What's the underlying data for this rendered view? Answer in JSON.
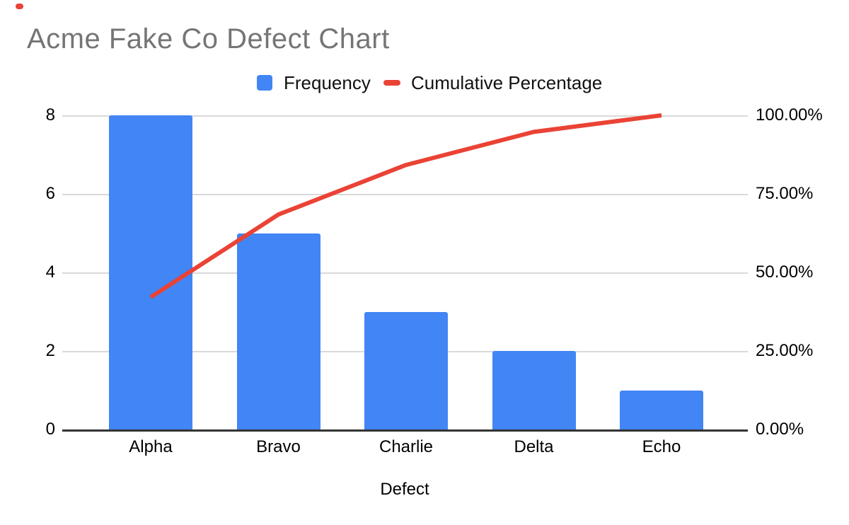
{
  "chart_data": {
    "type": "bar",
    "subtype": "pareto-combo-bar-line",
    "title": "Acme Fake Co Defect Chart",
    "xlabel": "Defect",
    "ylabel_left": "",
    "ylabel_right": "",
    "categories": [
      "Alpha",
      "Bravo",
      "Charlie",
      "Delta",
      "Echo"
    ],
    "series": [
      {
        "name": "Frequency",
        "render": "bar",
        "axis": "left",
        "values": [
          8,
          5,
          3,
          2,
          1
        ],
        "color": "#4285F4"
      },
      {
        "name": "Cumulative Percentage",
        "render": "line",
        "axis": "right",
        "values_percent": [
          42.11,
          68.42,
          84.21,
          94.74,
          100.0
        ],
        "color": "#EA4335"
      }
    ],
    "left_axis": {
      "tick_labels_top_to_bottom": [
        "8",
        "6",
        "4",
        "2",
        "0"
      ],
      "range": [
        0,
        8
      ]
    },
    "right_axis": {
      "tick_labels_top_to_bottom": [
        "100.00%",
        "75.00%",
        "50.00%",
        "25.00%",
        "0.00%"
      ],
      "range_percent": [
        0,
        100
      ]
    },
    "grid": true,
    "legend_position": "top"
  },
  "legend": {
    "frequency_label": "Frequency",
    "cumulative_label": "Cumulative Percentage"
  },
  "colors": {
    "bar_blue": "#4285F4",
    "line_red": "#EA4335",
    "title_gray": "#757575",
    "gridline_gray": "#d9d9d9",
    "axis_line_dark": "#333333",
    "label_black": "#111111",
    "corner_dot_red": "#e8443a"
  }
}
